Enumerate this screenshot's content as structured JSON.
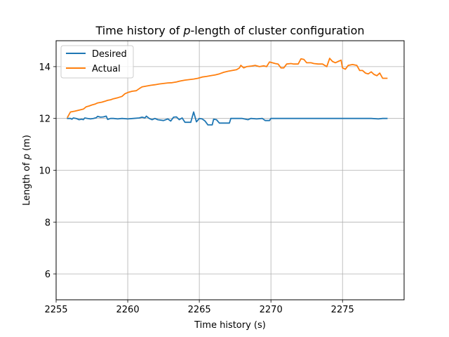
{
  "chart_data": {
    "type": "line",
    "title_pre": "Time history of ",
    "title_var": "p",
    "title_post": "-length of cluster configuration",
    "xlabel": "Time history (s)",
    "ylabel_pre": "Length of ",
    "ylabel_var": "p",
    "ylabel_post": " (m)",
    "xlim": [
      2255.0,
      2279.3
    ],
    "ylim": [
      5.0,
      15.0
    ],
    "xticks": [
      2255,
      2260,
      2265,
      2270,
      2275
    ],
    "yticks": [
      6,
      8,
      10,
      12,
      14
    ],
    "grid": true,
    "legend_position": "upper-left",
    "series": [
      {
        "name": "Desired",
        "color": "#1f77b4",
        "points": [
          [
            2255.8,
            12.0
          ],
          [
            2256.0,
            12.0
          ],
          [
            2256.1,
            11.97
          ],
          [
            2256.2,
            12.02
          ],
          [
            2256.4,
            12.0
          ],
          [
            2256.6,
            11.95
          ],
          [
            2256.8,
            11.97
          ],
          [
            2256.9,
            11.95
          ],
          [
            2257.0,
            12.02
          ],
          [
            2257.2,
            12.0
          ],
          [
            2257.4,
            11.98
          ],
          [
            2257.6,
            12.0
          ],
          [
            2257.8,
            12.03
          ],
          [
            2257.9,
            12.08
          ],
          [
            2258.1,
            12.05
          ],
          [
            2258.3,
            12.06
          ],
          [
            2258.5,
            12.09
          ],
          [
            2258.6,
            11.96
          ],
          [
            2258.8,
            12.0
          ],
          [
            2259.0,
            12.0
          ],
          [
            2259.3,
            11.98
          ],
          [
            2259.6,
            12.0
          ],
          [
            2260.0,
            11.98
          ],
          [
            2260.4,
            12.0
          ],
          [
            2260.8,
            12.02
          ],
          [
            2261.0,
            12.05
          ],
          [
            2261.2,
            12.02
          ],
          [
            2261.3,
            12.09
          ],
          [
            2261.5,
            12.0
          ],
          [
            2261.7,
            11.95
          ],
          [
            2261.9,
            12.0
          ],
          [
            2262.1,
            11.95
          ],
          [
            2262.5,
            11.92
          ],
          [
            2262.8,
            11.98
          ],
          [
            2263.0,
            11.9
          ],
          [
            2263.2,
            12.05
          ],
          [
            2263.4,
            12.06
          ],
          [
            2263.6,
            11.95
          ],
          [
            2263.8,
            12.02
          ],
          [
            2264.0,
            11.85
          ],
          [
            2264.4,
            11.85
          ],
          [
            2264.6,
            12.25
          ],
          [
            2264.8,
            11.87
          ],
          [
            2265.0,
            12.0
          ],
          [
            2265.2,
            11.98
          ],
          [
            2265.4,
            11.9
          ],
          [
            2265.6,
            11.75
          ],
          [
            2265.9,
            11.75
          ],
          [
            2266.0,
            11.97
          ],
          [
            2266.2,
            11.95
          ],
          [
            2266.4,
            11.82
          ],
          [
            2266.8,
            11.82
          ],
          [
            2267.1,
            11.82
          ],
          [
            2267.2,
            12.0
          ],
          [
            2267.6,
            12.0
          ],
          [
            2268.0,
            12.0
          ],
          [
            2268.4,
            11.95
          ],
          [
            2268.6,
            12.0
          ],
          [
            2269.0,
            11.98
          ],
          [
            2269.4,
            12.0
          ],
          [
            2269.6,
            11.92
          ],
          [
            2269.9,
            11.92
          ],
          [
            2270.0,
            12.0
          ],
          [
            2271.0,
            12.0
          ],
          [
            2272.0,
            12.0
          ],
          [
            2273.0,
            12.0
          ],
          [
            2274.0,
            12.0
          ],
          [
            2275.0,
            12.0
          ],
          [
            2276.0,
            12.0
          ],
          [
            2277.0,
            12.0
          ],
          [
            2277.5,
            11.98
          ],
          [
            2277.8,
            12.0
          ],
          [
            2278.1,
            12.0
          ]
        ]
      },
      {
        "name": "Actual",
        "color": "#ff7f0e",
        "points": [
          [
            2255.8,
            12.05
          ],
          [
            2256.0,
            12.25
          ],
          [
            2256.3,
            12.28
          ],
          [
            2256.6,
            12.32
          ],
          [
            2256.9,
            12.36
          ],
          [
            2257.1,
            12.45
          ],
          [
            2257.3,
            12.48
          ],
          [
            2257.5,
            12.52
          ],
          [
            2257.7,
            12.55
          ],
          [
            2257.9,
            12.6
          ],
          [
            2258.2,
            12.63
          ],
          [
            2258.4,
            12.66
          ],
          [
            2258.6,
            12.7
          ],
          [
            2258.8,
            12.72
          ],
          [
            2259.0,
            12.76
          ],
          [
            2259.3,
            12.8
          ],
          [
            2259.6,
            12.85
          ],
          [
            2259.8,
            12.95
          ],
          [
            2260.0,
            13.0
          ],
          [
            2260.3,
            13.05
          ],
          [
            2260.6,
            13.07
          ],
          [
            2260.8,
            13.15
          ],
          [
            2261.0,
            13.22
          ],
          [
            2261.3,
            13.25
          ],
          [
            2261.6,
            13.28
          ],
          [
            2261.9,
            13.3
          ],
          [
            2262.2,
            13.33
          ],
          [
            2262.5,
            13.35
          ],
          [
            2262.8,
            13.37
          ],
          [
            2263.1,
            13.38
          ],
          [
            2263.4,
            13.41
          ],
          [
            2263.7,
            13.45
          ],
          [
            2264.0,
            13.48
          ],
          [
            2264.3,
            13.5
          ],
          [
            2264.6,
            13.52
          ],
          [
            2264.9,
            13.55
          ],
          [
            2265.2,
            13.6
          ],
          [
            2265.5,
            13.62
          ],
          [
            2265.8,
            13.65
          ],
          [
            2266.1,
            13.68
          ],
          [
            2266.4,
            13.72
          ],
          [
            2266.7,
            13.78
          ],
          [
            2267.0,
            13.82
          ],
          [
            2267.3,
            13.85
          ],
          [
            2267.6,
            13.88
          ],
          [
            2267.8,
            13.95
          ],
          [
            2267.9,
            14.05
          ],
          [
            2268.1,
            13.95
          ],
          [
            2268.3,
            14.0
          ],
          [
            2268.6,
            14.02
          ],
          [
            2268.9,
            14.05
          ],
          [
            2269.2,
            14.0
          ],
          [
            2269.5,
            14.03
          ],
          [
            2269.7,
            14.0
          ],
          [
            2269.9,
            14.18
          ],
          [
            2270.1,
            14.15
          ],
          [
            2270.3,
            14.12
          ],
          [
            2270.5,
            14.1
          ],
          [
            2270.7,
            13.95
          ],
          [
            2270.9,
            13.95
          ],
          [
            2271.1,
            14.1
          ],
          [
            2271.4,
            14.12
          ],
          [
            2271.6,
            14.1
          ],
          [
            2271.9,
            14.1
          ],
          [
            2272.1,
            14.3
          ],
          [
            2272.3,
            14.28
          ],
          [
            2272.5,
            14.15
          ],
          [
            2272.8,
            14.15
          ],
          [
            2273.0,
            14.12
          ],
          [
            2273.3,
            14.1
          ],
          [
            2273.6,
            14.1
          ],
          [
            2273.9,
            14.0
          ],
          [
            2274.1,
            14.32
          ],
          [
            2274.3,
            14.2
          ],
          [
            2274.5,
            14.15
          ],
          [
            2274.7,
            14.2
          ],
          [
            2274.9,
            14.25
          ],
          [
            2275.0,
            13.95
          ],
          [
            2275.2,
            13.9
          ],
          [
            2275.4,
            14.05
          ],
          [
            2275.7,
            14.08
          ],
          [
            2276.0,
            14.05
          ],
          [
            2276.2,
            13.85
          ],
          [
            2276.4,
            13.85
          ],
          [
            2276.6,
            13.75
          ],
          [
            2276.8,
            13.72
          ],
          [
            2277.0,
            13.8
          ],
          [
            2277.2,
            13.7
          ],
          [
            2277.4,
            13.65
          ],
          [
            2277.6,
            13.75
          ],
          [
            2277.8,
            13.55
          ],
          [
            2278.1,
            13.55
          ]
        ]
      }
    ]
  }
}
